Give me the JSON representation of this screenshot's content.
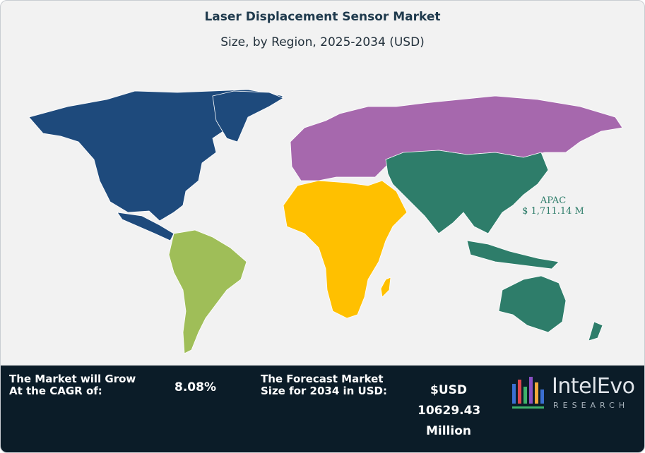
{
  "chart_data": {
    "type": "map",
    "title": "Laser Displacement Sensor Market",
    "subtitle": "Size, by Region, 2025-2034 (USD)",
    "regions": [
      {
        "name": "North America",
        "color": "#1e4a7c"
      },
      {
        "name": "Latin America",
        "color": "#9fbe58"
      },
      {
        "name": "Europe",
        "color": "#a668ad"
      },
      {
        "name": "Middle East & Africa",
        "color": "#ffc000"
      },
      {
        "name": "APAC",
        "color": "#2e7d6a",
        "label": "APAC",
        "value_label": "$ 1,711.14 M"
      }
    ]
  },
  "footer": {
    "cagr_label": "The Market will Grow At the CAGR of:",
    "cagr_value": "8.08%",
    "forecast_label": "The Forecast Market Size for 2034 in USD:",
    "forecast_line1": "$USD",
    "forecast_line2": "10629.43",
    "forecast_line3": "Million",
    "logo_main": "IntelEvo",
    "logo_sub": "RESEARCH"
  }
}
